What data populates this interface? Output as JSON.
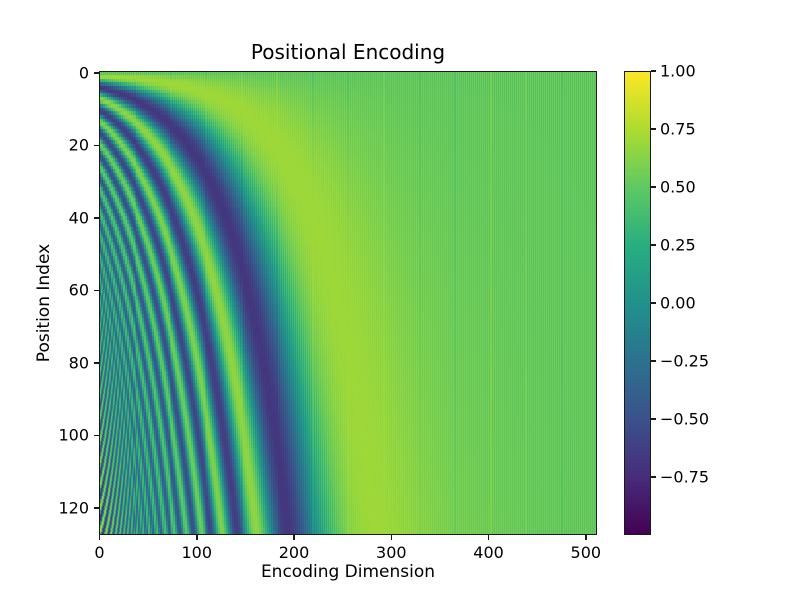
{
  "figure": {
    "background": "#ffffff"
  },
  "chart_data": {
    "type": "heatmap",
    "title": "Positional Encoding",
    "xlabel": "Encoding Dimension",
    "ylabel": "Position Index",
    "x_ticks": [
      0,
      100,
      200,
      300,
      400,
      500
    ],
    "y_ticks": [
      0,
      20,
      40,
      60,
      80,
      100,
      120
    ],
    "x_range": [
      0,
      511
    ],
    "y_range": [
      0,
      127
    ],
    "value_range": [
      -1,
      1
    ],
    "colormap": "viridis",
    "colormap_stops": [
      {
        "t": 0.0,
        "color": "#440154"
      },
      {
        "t": 0.125,
        "color": "#472d7b"
      },
      {
        "t": 0.25,
        "color": "#3b528b"
      },
      {
        "t": 0.375,
        "color": "#2c728e"
      },
      {
        "t": 0.5,
        "color": "#21918c"
      },
      {
        "t": 0.625,
        "color": "#28ae80"
      },
      {
        "t": 0.75,
        "color": "#5ec962"
      },
      {
        "t": 0.875,
        "color": "#addc30"
      },
      {
        "t": 1.0,
        "color": "#fde725"
      }
    ],
    "colorbar_ticks": [
      {
        "value": 1.0,
        "label": "1.00"
      },
      {
        "value": 0.75,
        "label": "0.75"
      },
      {
        "value": 0.5,
        "label": "0.50"
      },
      {
        "value": 0.25,
        "label": "0.25"
      },
      {
        "value": 0.0,
        "label": "0.00"
      },
      {
        "value": -0.25,
        "label": "−0.25"
      },
      {
        "value": -0.5,
        "label": "−0.50"
      },
      {
        "value": -0.75,
        "label": "−0.75"
      }
    ],
    "data_generator": {
      "name": "sinusoidal-positional-encoding",
      "formula_even": "PE[pos, 2i] = sin(pos / base^(2i/d_model))",
      "formula_odd": "PE[pos, 2i+1] = cos(pos / base^(2i/d_model))",
      "d_model": 512,
      "n_positions": 128,
      "base": 10000
    },
    "axis_color": "#1a1a1a",
    "text_color": "#000000"
  }
}
